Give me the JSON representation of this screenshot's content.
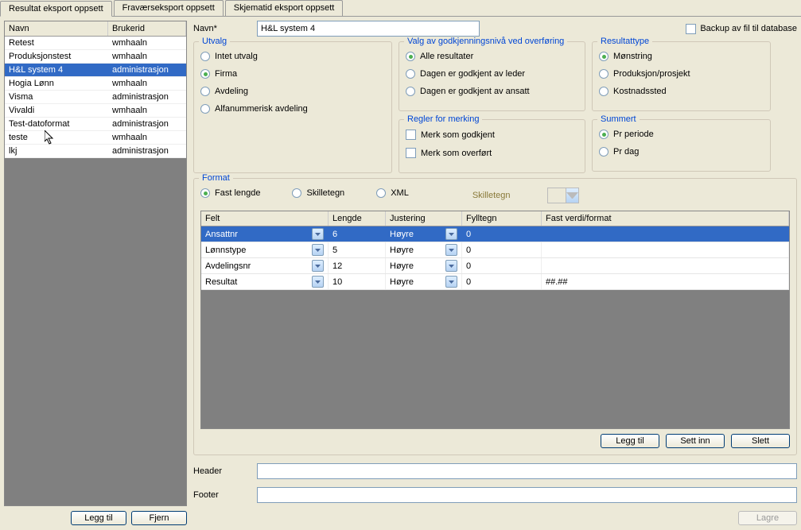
{
  "tabs": {
    "items": [
      "Resultat eksport oppsett",
      "Fraværseksport oppsett",
      "Skjematid eksport oppsett"
    ],
    "active": 0
  },
  "leftTable": {
    "headers": [
      "Navn",
      "Brukerid"
    ],
    "rows": [
      {
        "navn": "Retest",
        "bruker": "wmhaaln",
        "sel": false
      },
      {
        "navn": "Produksjonstest",
        "bruker": "wmhaaln",
        "sel": false
      },
      {
        "navn": "H&L system 4",
        "bruker": "administrasjon",
        "sel": true
      },
      {
        "navn": "Hogia Lønn",
        "bruker": "wmhaaln",
        "sel": false
      },
      {
        "navn": "Visma",
        "bruker": "administrasjon",
        "sel": false
      },
      {
        "navn": "Vivaldi",
        "bruker": "wmhaaln",
        "sel": false
      },
      {
        "navn": "Test-datoformat",
        "bruker": "administrasjon",
        "sel": false
      },
      {
        "navn": "teste",
        "bruker": "wmhaaln",
        "sel": false
      },
      {
        "navn": "lkj",
        "bruker": "administrasjon",
        "sel": false
      }
    ]
  },
  "leftButtons": {
    "leggtil": "Legg til",
    "fjern": "Fjern"
  },
  "form": {
    "navnLabel": "Navn*",
    "navnValue": "H&L system 4",
    "backupLabel": "Backup av fil til database"
  },
  "utvalg": {
    "title": "Utvalg",
    "options": [
      "Intet utvalg",
      "Firma",
      "Avdeling",
      "Alfanummerisk avdeling"
    ],
    "selected": 1
  },
  "valg": {
    "title": "Valg av godkjenningsnivå ved overføring",
    "options": [
      "Alle resultater",
      "Dagen er godkjent av leder",
      "Dagen er godkjent av ansatt"
    ],
    "selected": 0
  },
  "regler": {
    "title": "Regler for merking",
    "options": [
      "Merk som godkjent",
      "Merk som overført"
    ]
  },
  "resultattype": {
    "title": "Resultattype",
    "options": [
      "Mønstring",
      "Produksjon/prosjekt",
      "Kostnadssted"
    ],
    "selected": 0
  },
  "summert": {
    "title": "Summert",
    "options": [
      "Pr periode",
      "Pr dag"
    ],
    "selected": 0
  },
  "format": {
    "title": "Format",
    "radios": [
      "Fast lengde",
      "Skilletegn",
      "XML"
    ],
    "selected": 0,
    "skilleLabel": "Skilletegn"
  },
  "grid": {
    "headers": [
      "Felt",
      "Lengde",
      "Justering",
      "Fylltegn",
      "Fast verdi/format"
    ],
    "rows": [
      {
        "felt": "Ansattnr",
        "len": "6",
        "just": "Høyre",
        "fyll": "0",
        "fast": "",
        "sel": true
      },
      {
        "felt": "Lønnstype",
        "len": "5",
        "just": "Høyre",
        "fyll": "0",
        "fast": "",
        "sel": false
      },
      {
        "felt": "Avdelingsnr",
        "len": "12",
        "just": "Høyre",
        "fyll": "0",
        "fast": "",
        "sel": false
      },
      {
        "felt": "Resultat",
        "len": "10",
        "just": "Høyre",
        "fyll": "0",
        "fast": "##.##",
        "sel": false
      }
    ]
  },
  "gridButtons": {
    "leggtil": "Legg til",
    "settinn": "Sett inn",
    "slett": "Slett"
  },
  "headerLabel": "Header",
  "footerLabel": "Footer",
  "lagre": "Lagre"
}
